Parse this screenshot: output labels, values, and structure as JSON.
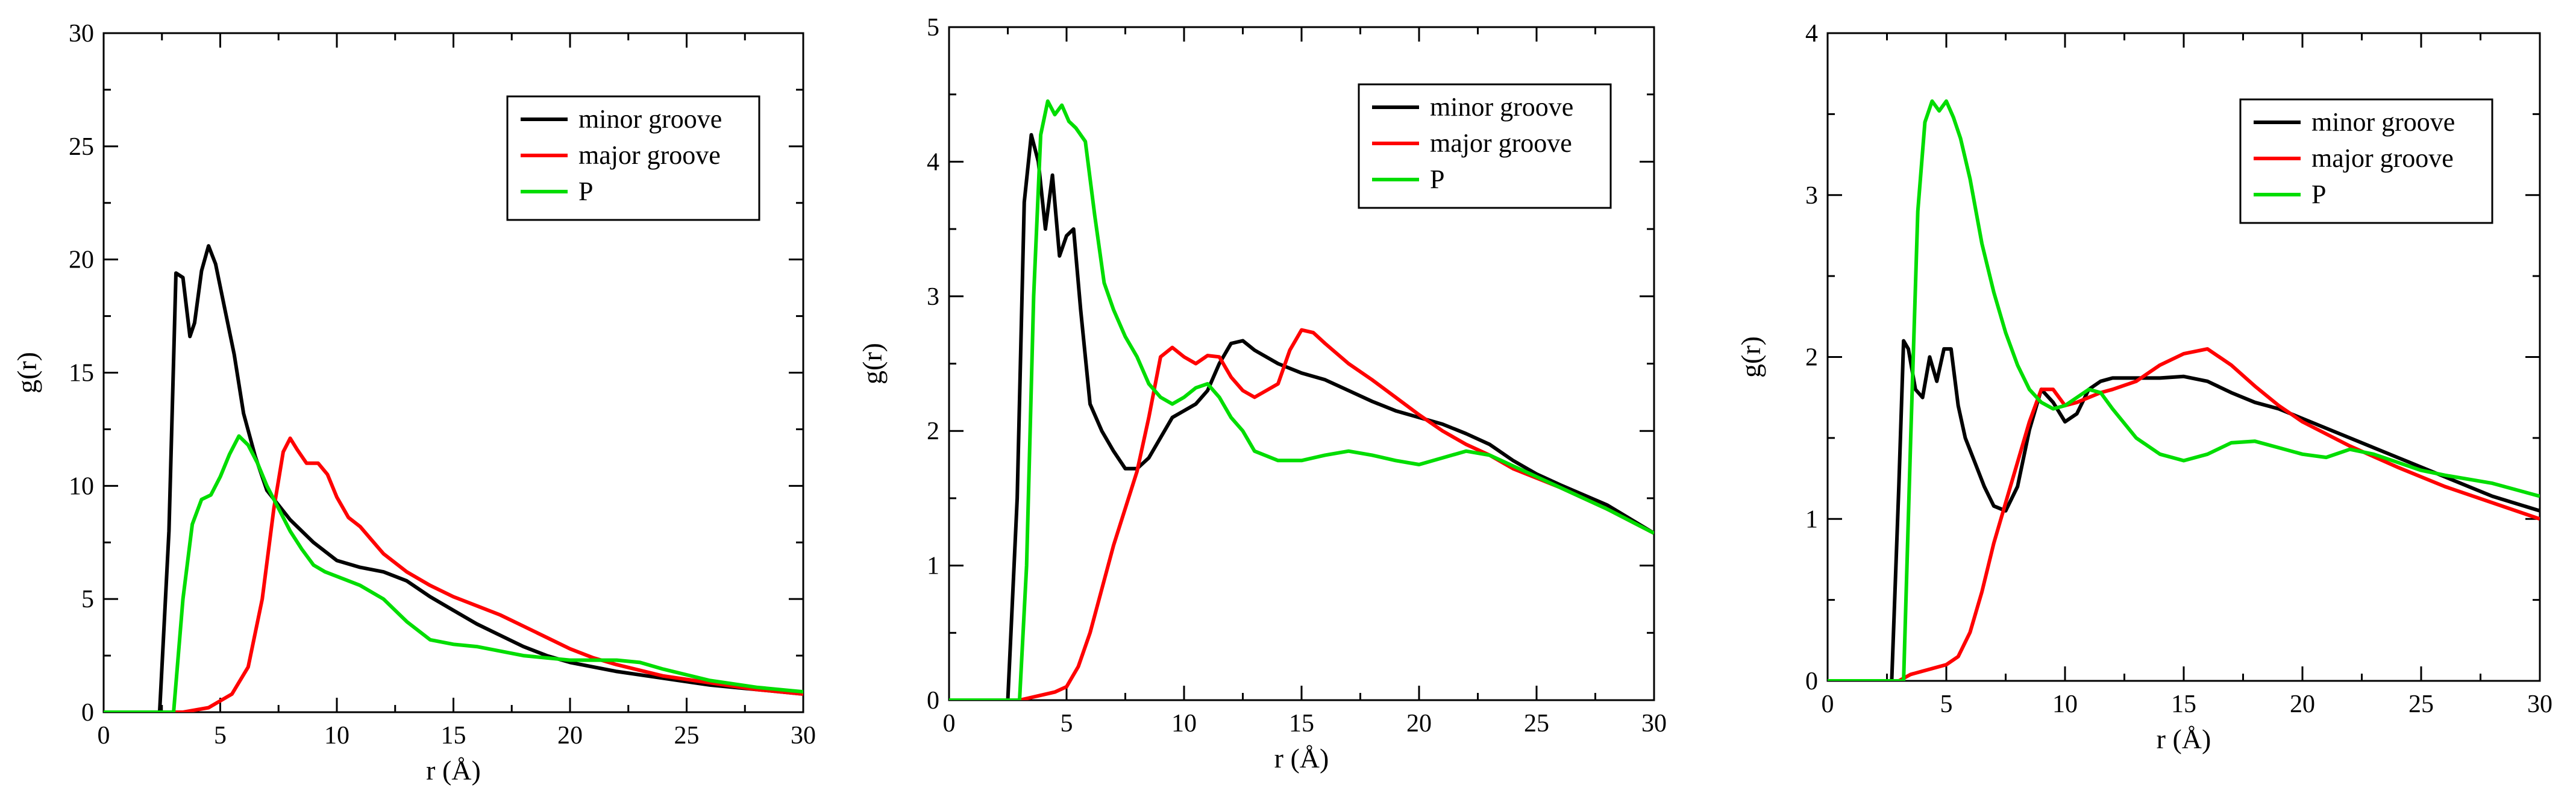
{
  "chart_data": [
    {
      "type": "line",
      "panel": "left",
      "xlabel": "r (Å)",
      "ylabel": "g(r)",
      "xlim": [
        0,
        30
      ],
      "ylim": [
        0,
        30
      ],
      "xticks": [
        0,
        5,
        10,
        15,
        20,
        25,
        30
      ],
      "yticks": [
        0,
        5,
        10,
        15,
        20,
        25,
        30
      ],
      "legend_position": "top-right",
      "series": [
        {
          "name": "minor groove",
          "color": "#000000",
          "x": [
            0,
            2.4,
            2.8,
            3.1,
            3.4,
            3.7,
            3.9,
            4.2,
            4.5,
            4.8,
            5.2,
            5.6,
            6.0,
            6.5,
            7,
            8,
            9,
            10,
            11,
            12,
            13,
            14,
            15,
            16,
            17,
            18,
            19,
            20,
            22,
            24,
            26,
            28,
            30
          ],
          "y": [
            0,
            0,
            8,
            19.4,
            19.2,
            16.6,
            17.2,
            19.5,
            20.6,
            19.8,
            17.8,
            15.8,
            13.2,
            11.3,
            9.8,
            8.5,
            7.5,
            6.7,
            6.4,
            6.2,
            5.8,
            5.1,
            4.5,
            3.9,
            3.4,
            2.9,
            2.5,
            2.2,
            1.8,
            1.5,
            1.2,
            1.0,
            0.8
          ]
        },
        {
          "name": "major groove",
          "color": "#ff0000",
          "x": [
            0,
            3.4,
            4.5,
            5.5,
            6.2,
            6.8,
            7.3,
            7.7,
            8.0,
            8.3,
            8.7,
            9.2,
            9.6,
            10,
            10.5,
            11,
            11.5,
            12,
            13,
            14,
            15,
            16,
            17,
            18,
            19,
            20,
            21,
            22,
            24,
            26,
            28,
            30
          ],
          "y": [
            0,
            0,
            0.2,
            0.8,
            2.0,
            5,
            9,
            11.5,
            12.1,
            11.6,
            11.0,
            11.0,
            10.5,
            9.5,
            8.6,
            8.2,
            7.6,
            7.0,
            6.2,
            5.6,
            5.1,
            4.7,
            4.3,
            3.8,
            3.3,
            2.8,
            2.4,
            2.1,
            1.6,
            1.3,
            1.0,
            0.8
          ]
        },
        {
          "name": "P",
          "color": "#00dd00",
          "x": [
            0,
            3.0,
            3.4,
            3.8,
            4.2,
            4.6,
            5.0,
            5.4,
            5.8,
            6.2,
            6.6,
            7,
            7.5,
            8,
            8.5,
            9,
            9.5,
            10,
            11,
            12,
            13,
            14,
            15,
            16,
            17,
            18,
            20,
            22,
            23,
            24,
            26,
            28,
            30
          ],
          "y": [
            0,
            0,
            5,
            8.3,
            9.4,
            9.6,
            10.4,
            11.4,
            12.2,
            11.8,
            11.0,
            10.0,
            9.0,
            8.0,
            7.2,
            6.5,
            6.2,
            6.0,
            5.6,
            5.0,
            4.0,
            3.2,
            3.0,
            2.9,
            2.7,
            2.5,
            2.3,
            2.3,
            2.2,
            1.9,
            1.4,
            1.1,
            0.9
          ]
        }
      ]
    },
    {
      "type": "line",
      "panel": "middle",
      "xlabel": "r (Å)",
      "ylabel": "g(r)",
      "xlim": [
        0,
        30
      ],
      "ylim": [
        0,
        5
      ],
      "xticks": [
        0,
        5,
        10,
        15,
        20,
        25,
        30
      ],
      "yticks": [
        0,
        1,
        2,
        3,
        4,
        5
      ],
      "legend_position": "top-right",
      "series": [
        {
          "name": "minor groove",
          "color": "#000000",
          "x": [
            0,
            2.5,
            2.9,
            3.2,
            3.5,
            3.8,
            4.1,
            4.4,
            4.7,
            5.0,
            5.3,
            5.6,
            6.0,
            6.5,
            7,
            7.5,
            8,
            8.5,
            9,
            9.5,
            10,
            10.5,
            11,
            11.5,
            12,
            12.5,
            13,
            14,
            15,
            16,
            17,
            18,
            19,
            20,
            21,
            22,
            23,
            24,
            25,
            26,
            28,
            30
          ],
          "y": [
            0,
            0,
            1.5,
            3.7,
            4.2,
            4.0,
            3.5,
            3.9,
            3.3,
            3.45,
            3.5,
            2.9,
            2.2,
            2.0,
            1.85,
            1.72,
            1.72,
            1.8,
            1.95,
            2.1,
            2.15,
            2.2,
            2.3,
            2.5,
            2.65,
            2.67,
            2.6,
            2.5,
            2.43,
            2.38,
            2.3,
            2.22,
            2.15,
            2.1,
            2.05,
            1.98,
            1.9,
            1.78,
            1.68,
            1.6,
            1.45,
            1.24
          ]
        },
        {
          "name": "major groove",
          "color": "#ff0000",
          "x": [
            0,
            3,
            3.5,
            4,
            4.5,
            5,
            5.5,
            6,
            7,
            8,
            8.5,
            9,
            9.5,
            10,
            10.5,
            11,
            11.5,
            12,
            12.5,
            13,
            13.5,
            14,
            14.5,
            15,
            15.5,
            16,
            17,
            18,
            19,
            20,
            21,
            22,
            23,
            24,
            25,
            26,
            28,
            30
          ],
          "y": [
            0,
            0,
            0.02,
            0.04,
            0.06,
            0.1,
            0.25,
            0.5,
            1.15,
            1.7,
            2.1,
            2.55,
            2.62,
            2.55,
            2.5,
            2.56,
            2.55,
            2.4,
            2.3,
            2.25,
            2.3,
            2.35,
            2.6,
            2.75,
            2.73,
            2.65,
            2.5,
            2.38,
            2.25,
            2.12,
            2.0,
            1.9,
            1.82,
            1.72,
            1.65,
            1.58,
            1.42,
            1.24
          ]
        },
        {
          "name": "P",
          "color": "#00dd00",
          "x": [
            0,
            3.0,
            3.3,
            3.6,
            3.9,
            4.2,
            4.5,
            4.8,
            5.1,
            5.4,
            5.8,
            6.2,
            6.6,
            7,
            7.5,
            8,
            8.5,
            9,
            9.5,
            10,
            10.5,
            11,
            11.5,
            12,
            12.5,
            13,
            14,
            15,
            16,
            17,
            18,
            19,
            20,
            21,
            22,
            23,
            24,
            25,
            26,
            28,
            30
          ],
          "y": [
            0,
            0,
            1.0,
            3.0,
            4.2,
            4.45,
            4.35,
            4.42,
            4.3,
            4.25,
            4.15,
            3.6,
            3.1,
            2.9,
            2.7,
            2.55,
            2.35,
            2.25,
            2.2,
            2.25,
            2.32,
            2.35,
            2.25,
            2.1,
            2.0,
            1.85,
            1.78,
            1.78,
            1.82,
            1.85,
            1.82,
            1.78,
            1.75,
            1.8,
            1.85,
            1.82,
            1.74,
            1.66,
            1.58,
            1.42,
            1.24
          ]
        }
      ]
    },
    {
      "type": "line",
      "panel": "right",
      "xlabel": "r (Å)",
      "ylabel": "g(r)",
      "xlim": [
        0,
        30
      ],
      "ylim": [
        0,
        4
      ],
      "xticks": [
        0,
        5,
        10,
        15,
        20,
        25,
        30
      ],
      "yticks": [
        0,
        1,
        2,
        3,
        4
      ],
      "legend_position": "top-right",
      "series": [
        {
          "name": "minor groove",
          "color": "#000000",
          "x": [
            0,
            2.7,
            3.0,
            3.2,
            3.4,
            3.7,
            4.0,
            4.3,
            4.6,
            4.9,
            5.2,
            5.5,
            5.8,
            6.2,
            6.6,
            7,
            7.5,
            8,
            8.5,
            9,
            9.5,
            10,
            10.5,
            11,
            11.5,
            12,
            13,
            14,
            15,
            16,
            17,
            18,
            19,
            20,
            22,
            24,
            26,
            28,
            30
          ],
          "y": [
            0,
            0,
            1.2,
            2.1,
            2.05,
            1.8,
            1.75,
            2.0,
            1.85,
            2.05,
            2.05,
            1.7,
            1.5,
            1.35,
            1.2,
            1.08,
            1.05,
            1.2,
            1.55,
            1.8,
            1.72,
            1.6,
            1.65,
            1.8,
            1.85,
            1.87,
            1.87,
            1.87,
            1.88,
            1.85,
            1.78,
            1.72,
            1.68,
            1.62,
            1.5,
            1.38,
            1.26,
            1.14,
            1.05
          ]
        },
        {
          "name": "major groove",
          "color": "#ff0000",
          "x": [
            0,
            3,
            3.5,
            4,
            4.5,
            5,
            5.5,
            6,
            6.5,
            7,
            7.5,
            8,
            8.5,
            9,
            9.5,
            10,
            10.5,
            11,
            11.5,
            12,
            13,
            14,
            15,
            16,
            17,
            18,
            19,
            20,
            22,
            24,
            26,
            28,
            30
          ],
          "y": [
            0,
            0,
            0.04,
            0.06,
            0.08,
            0.1,
            0.15,
            0.3,
            0.55,
            0.85,
            1.1,
            1.35,
            1.6,
            1.8,
            1.8,
            1.7,
            1.72,
            1.75,
            1.78,
            1.8,
            1.85,
            1.95,
            2.02,
            2.05,
            1.95,
            1.82,
            1.7,
            1.6,
            1.45,
            1.32,
            1.2,
            1.1,
            1.0
          ]
        },
        {
          "name": "P",
          "color": "#00dd00",
          "x": [
            0,
            3.2,
            3.5,
            3.8,
            4.1,
            4.4,
            4.7,
            5.0,
            5.3,
            5.6,
            6,
            6.5,
            7,
            7.5,
            8,
            8.5,
            9,
            9.5,
            10,
            10.5,
            11,
            11.5,
            12,
            13,
            14,
            15,
            16,
            17,
            18,
            19,
            20,
            21,
            22,
            23,
            24,
            25,
            26,
            28,
            30
          ],
          "y": [
            0,
            0,
            1.5,
            2.9,
            3.45,
            3.58,
            3.52,
            3.58,
            3.48,
            3.35,
            3.1,
            2.7,
            2.4,
            2.15,
            1.95,
            1.8,
            1.72,
            1.68,
            1.7,
            1.75,
            1.8,
            1.78,
            1.68,
            1.5,
            1.4,
            1.36,
            1.4,
            1.47,
            1.48,
            1.44,
            1.4,
            1.38,
            1.43,
            1.4,
            1.35,
            1.3,
            1.27,
            1.22,
            1.14
          ]
        }
      ]
    }
  ]
}
